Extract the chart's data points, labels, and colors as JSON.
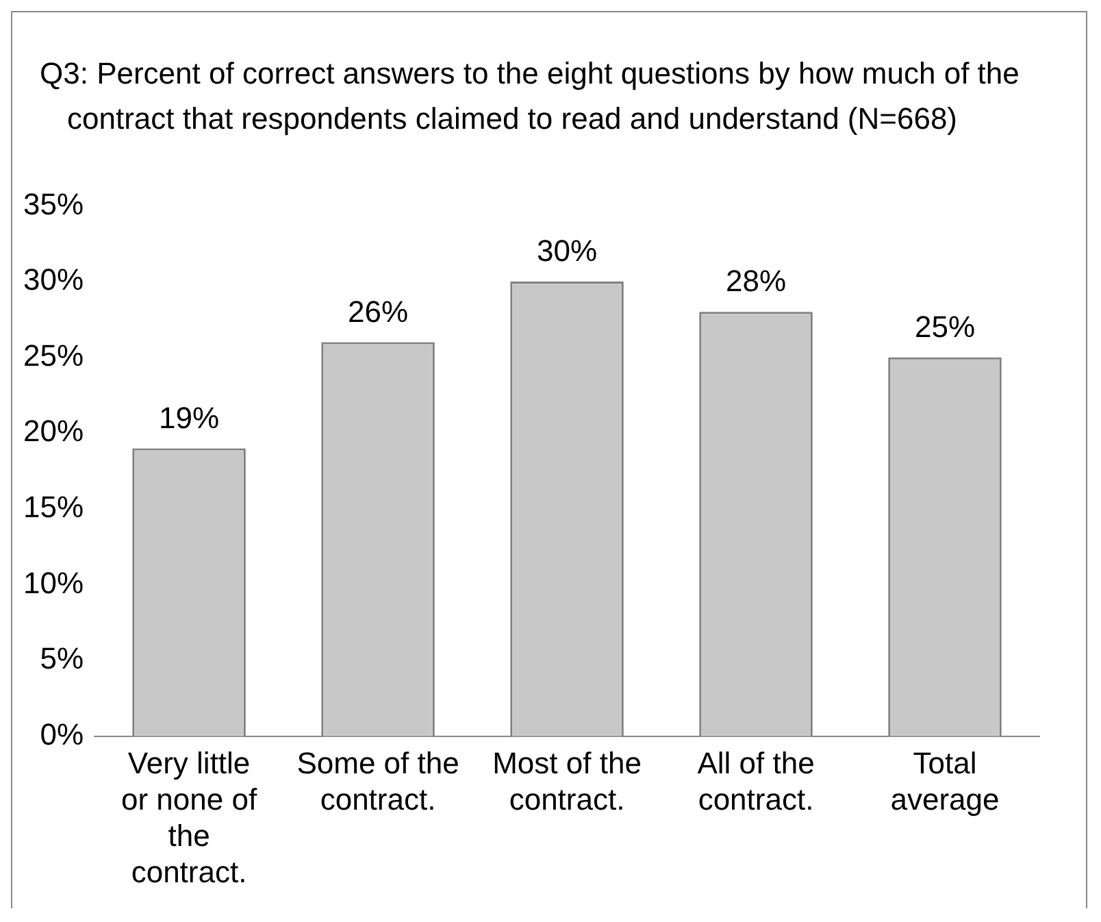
{
  "chart_data": {
    "type": "bar",
    "title": "Q3: Percent of correct answers to  the eight questions by how much of the contract that respondents claimed to read and understand (N=668)",
    "categories": [
      "Very little or none of the contract.",
      "Some of the contract.",
      "Most of the contract.",
      "All of the contract.",
      "Total average"
    ],
    "values": [
      19,
      26,
      30,
      28,
      25
    ],
    "color": "#c8c8c8",
    "value_labels": [
      "19%",
      "26%",
      "30%",
      "28%",
      "25%"
    ],
    "ylim": [
      0,
      35
    ],
    "yticks": [
      {
        "value": 0,
        "label": "0%"
      },
      {
        "value": 5,
        "label": "5%"
      },
      {
        "value": 10,
        "label": "10%"
      },
      {
        "value": 15,
        "label": "15%"
      },
      {
        "value": 20,
        "label": "20%"
      },
      {
        "value": 25,
        "label": "25%"
      },
      {
        "value": 30,
        "label": "30%"
      },
      {
        "value": 35,
        "label": "35%"
      }
    ],
    "grid": false,
    "legend": false
  }
}
